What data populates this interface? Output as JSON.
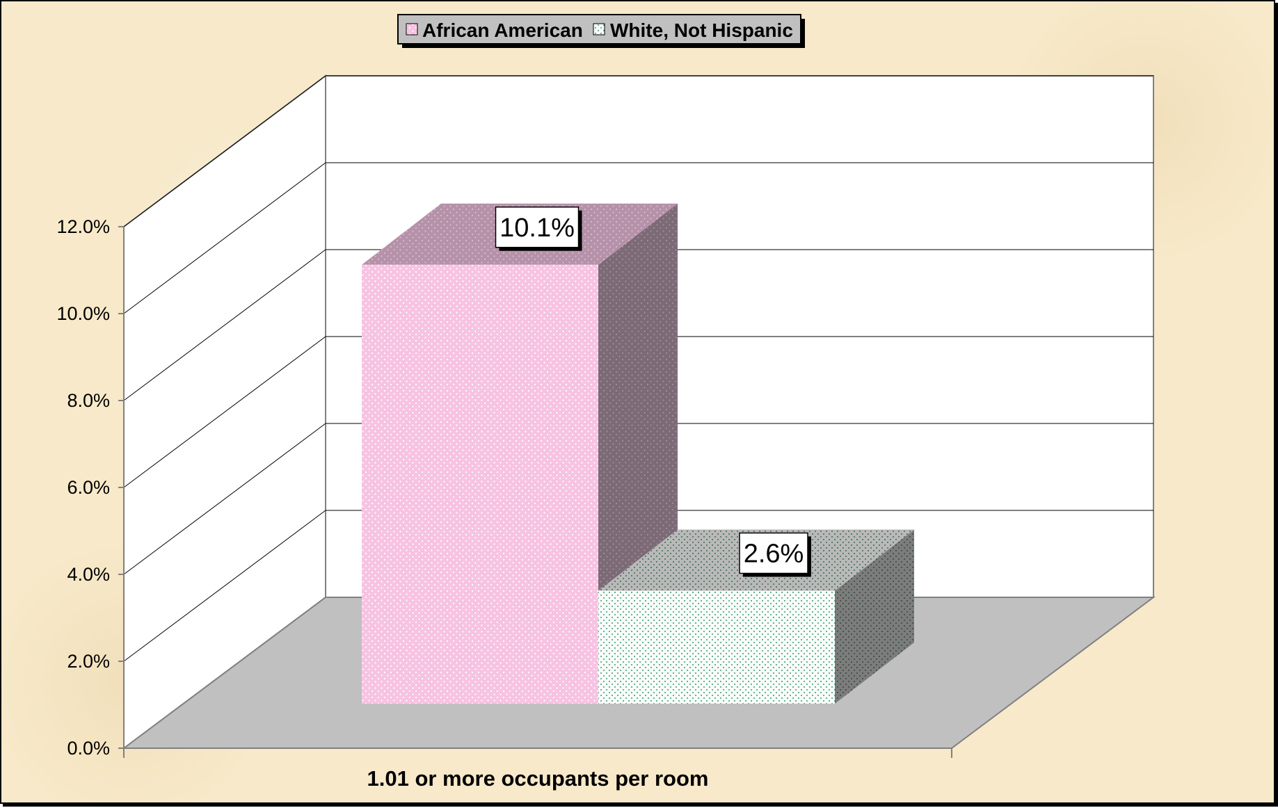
{
  "chart_data": {
    "type": "bar",
    "style": "3d-clustered-column",
    "categories": [
      "1.01 or more occupants per room"
    ],
    "series": [
      {
        "name": "African American",
        "values": [
          10.1
        ],
        "data_labels": [
          "10.1%"
        ],
        "color": "#f7c3e2",
        "side_color": "#7d6a77",
        "top_color": "#b592a9"
      },
      {
        "name": "White, Not Hispanic",
        "values": [
          2.6
        ],
        "data_labels": [
          "2.6%"
        ],
        "color": "#f5fbf8",
        "side_color": "#7e7e7e",
        "top_color": "#b7b7b7"
      }
    ],
    "yticks": [
      "0.0%",
      "2.0%",
      "4.0%",
      "6.0%",
      "8.0%",
      "10.0%",
      "12.0%"
    ],
    "ylim": [
      0,
      12
    ],
    "grid": true,
    "legend_position": "top",
    "floor_color": "#c0c0c0",
    "wall_color": "#ffffff",
    "background_color": "#f7e9c9"
  }
}
